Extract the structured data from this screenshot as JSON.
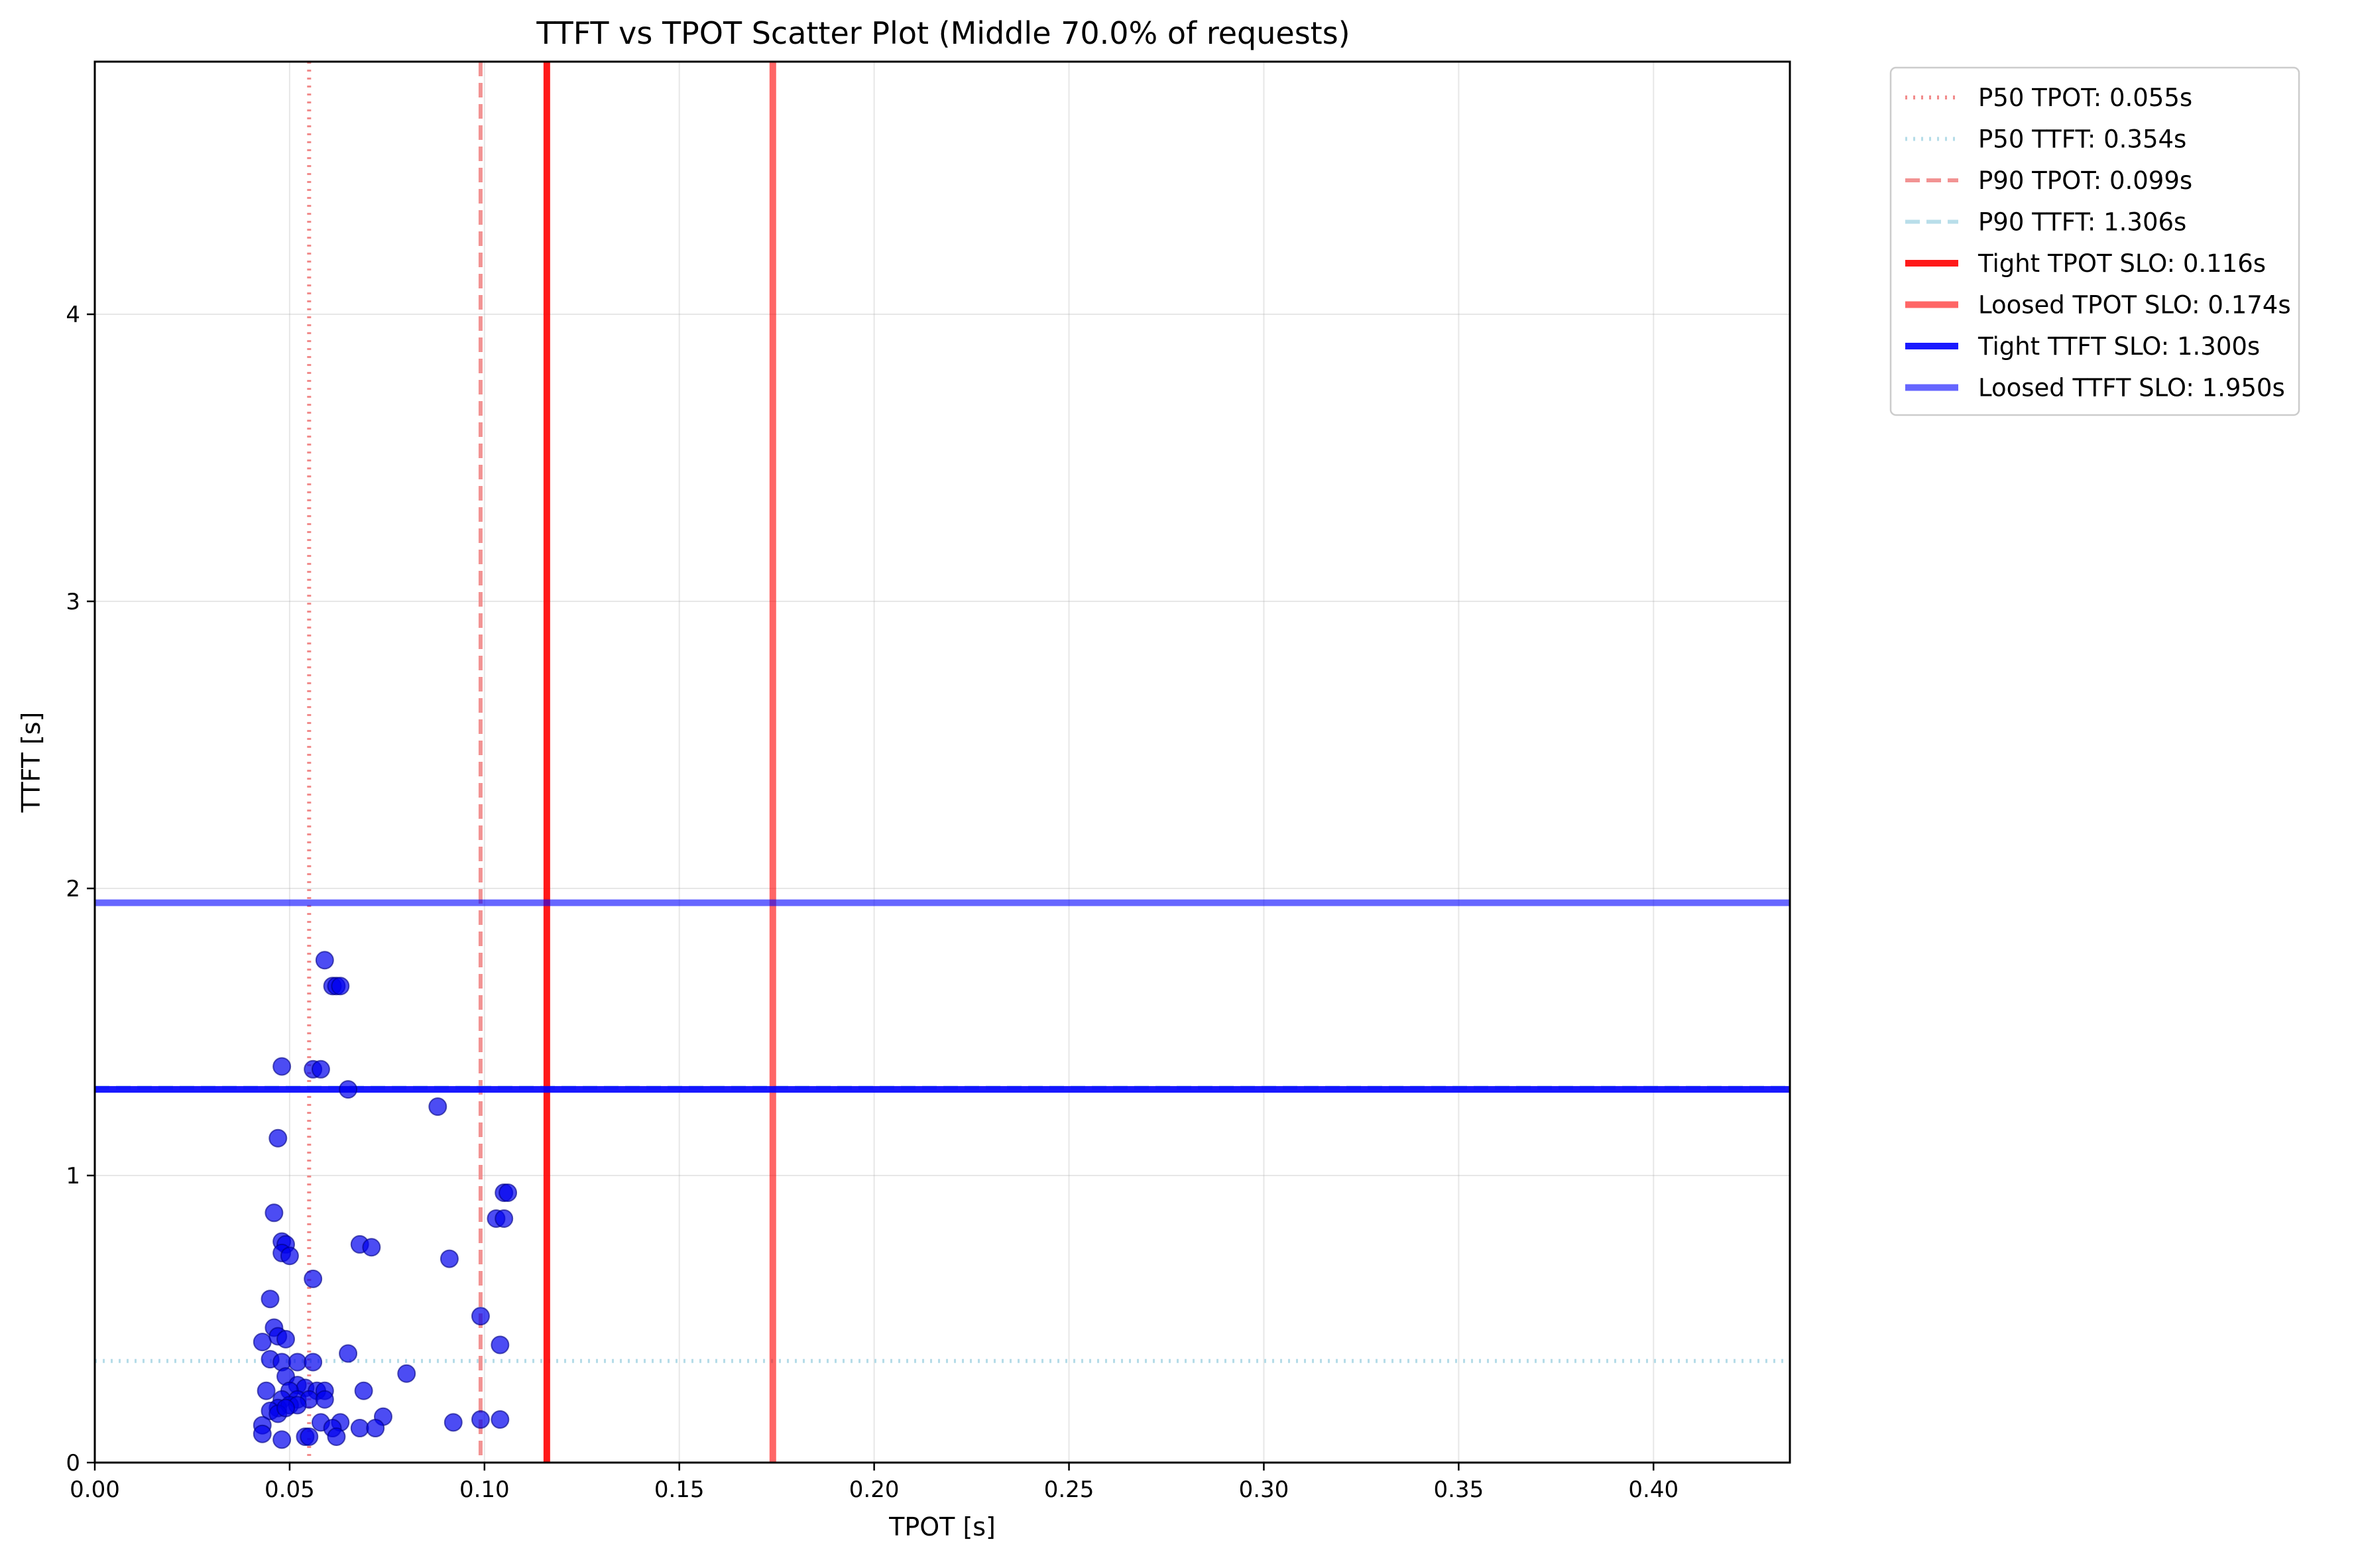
{
  "chart_data": {
    "type": "scatter",
    "title": "TTFT vs TPOT Scatter Plot (Middle 70.0% of requests)",
    "xlabel": "TPOT [s]",
    "ylabel": "TTFT [s]",
    "xlim": [
      0.0,
      0.435
    ],
    "ylim": [
      0,
      4.88
    ],
    "x_ticks": [
      0.0,
      0.05,
      0.1,
      0.15,
      0.2,
      0.25,
      0.3,
      0.35,
      0.4
    ],
    "x_tick_labels": [
      "0.00",
      "0.05",
      "0.10",
      "0.15",
      "0.20",
      "0.25",
      "0.30",
      "0.35",
      "0.40"
    ],
    "y_ticks": [
      0,
      1,
      2,
      3,
      4
    ],
    "y_tick_labels": [
      "0",
      "1",
      "2",
      "3",
      "4"
    ],
    "grid": true,
    "legend_position": "outside-top-right",
    "colors": {
      "points": "#0000ee",
      "p50_tpot": "#f08080",
      "p50_ttft": "#add8e6",
      "p90_tpot": "#f08080",
      "p90_ttft": "#add8e6",
      "tight_tpot": "#ff0000",
      "loosed_tpot": "#ff4d4d",
      "tight_ttft": "#0000ff",
      "loosed_ttft": "#4d4dff"
    },
    "reference_lines": [
      {
        "label": "P50 TPOT: 0.055s",
        "orientation": "vertical",
        "value": 0.055,
        "style": "dotted",
        "color": "#f08080",
        "opacity": 0.9,
        "width": 6
      },
      {
        "label": "P50 TTFT: 0.354s",
        "orientation": "horizontal",
        "value": 0.354,
        "style": "dotted",
        "color": "#add8e6",
        "opacity": 0.9,
        "width": 6
      },
      {
        "label": "P90 TPOT: 0.099s",
        "orientation": "vertical",
        "value": 0.099,
        "style": "dashed",
        "color": "#f08080",
        "opacity": 0.85,
        "width": 6
      },
      {
        "label": "P90 TTFT: 1.306s",
        "orientation": "horizontal",
        "value": 1.306,
        "style": "dashed",
        "color": "#add8e6",
        "opacity": 0.85,
        "width": 6
      },
      {
        "label": "Tight TPOT SLO: 0.116s",
        "orientation": "vertical",
        "value": 0.116,
        "style": "solid",
        "color": "#ff0000",
        "opacity": 0.9,
        "width": 10
      },
      {
        "label": "Loosed TPOT SLO: 0.174s",
        "orientation": "vertical",
        "value": 0.174,
        "style": "solid",
        "color": "#ff0000",
        "opacity": 0.6,
        "width": 10
      },
      {
        "label": "Tight TTFT SLO: 1.300s",
        "orientation": "horizontal",
        "value": 1.3,
        "style": "solid",
        "color": "#0000ff",
        "opacity": 0.9,
        "width": 10
      },
      {
        "label": "Loosed TTFT SLO: 1.950s",
        "orientation": "horizontal",
        "value": 1.95,
        "style": "solid",
        "color": "#0000ff",
        "opacity": 0.6,
        "width": 10
      }
    ],
    "points": [
      [
        0.059,
        1.75
      ],
      [
        0.061,
        1.66
      ],
      [
        0.062,
        1.66
      ],
      [
        0.063,
        1.66
      ],
      [
        0.048,
        1.38
      ],
      [
        0.056,
        1.37
      ],
      [
        0.058,
        1.37
      ],
      [
        0.065,
        1.3
      ],
      [
        0.088,
        1.24
      ],
      [
        0.047,
        1.13
      ],
      [
        0.105,
        0.94
      ],
      [
        0.106,
        0.94
      ],
      [
        0.046,
        0.87
      ],
      [
        0.103,
        0.85
      ],
      [
        0.105,
        0.85
      ],
      [
        0.048,
        0.77
      ],
      [
        0.049,
        0.76
      ],
      [
        0.068,
        0.76
      ],
      [
        0.071,
        0.75
      ],
      [
        0.048,
        0.73
      ],
      [
        0.05,
        0.72
      ],
      [
        0.091,
        0.71
      ],
      [
        0.056,
        0.64
      ],
      [
        0.045,
        0.57
      ],
      [
        0.099,
        0.51
      ],
      [
        0.046,
        0.47
      ],
      [
        0.043,
        0.42
      ],
      [
        0.047,
        0.44
      ],
      [
        0.049,
        0.43
      ],
      [
        0.104,
        0.41
      ],
      [
        0.065,
        0.38
      ],
      [
        0.045,
        0.36
      ],
      [
        0.048,
        0.35
      ],
      [
        0.052,
        0.35
      ],
      [
        0.056,
        0.35
      ],
      [
        0.08,
        0.31
      ],
      [
        0.049,
        0.3
      ],
      [
        0.052,
        0.27
      ],
      [
        0.054,
        0.26
      ],
      [
        0.044,
        0.25
      ],
      [
        0.05,
        0.25
      ],
      [
        0.057,
        0.25
      ],
      [
        0.059,
        0.25
      ],
      [
        0.069,
        0.25
      ],
      [
        0.048,
        0.22
      ],
      [
        0.052,
        0.22
      ],
      [
        0.055,
        0.22
      ],
      [
        0.059,
        0.22
      ],
      [
        0.047,
        0.19
      ],
      [
        0.05,
        0.2
      ],
      [
        0.052,
        0.2
      ],
      [
        0.045,
        0.18
      ],
      [
        0.047,
        0.17
      ],
      [
        0.049,
        0.19
      ],
      [
        0.074,
        0.16
      ],
      [
        0.058,
        0.14
      ],
      [
        0.063,
        0.14
      ],
      [
        0.092,
        0.14
      ],
      [
        0.099,
        0.15
      ],
      [
        0.104,
        0.15
      ],
      [
        0.043,
        0.13
      ],
      [
        0.061,
        0.12
      ],
      [
        0.068,
        0.12
      ],
      [
        0.072,
        0.12
      ],
      [
        0.043,
        0.1
      ],
      [
        0.048,
        0.08
      ],
      [
        0.054,
        0.09
      ],
      [
        0.055,
        0.09
      ],
      [
        0.062,
        0.09
      ]
    ]
  }
}
